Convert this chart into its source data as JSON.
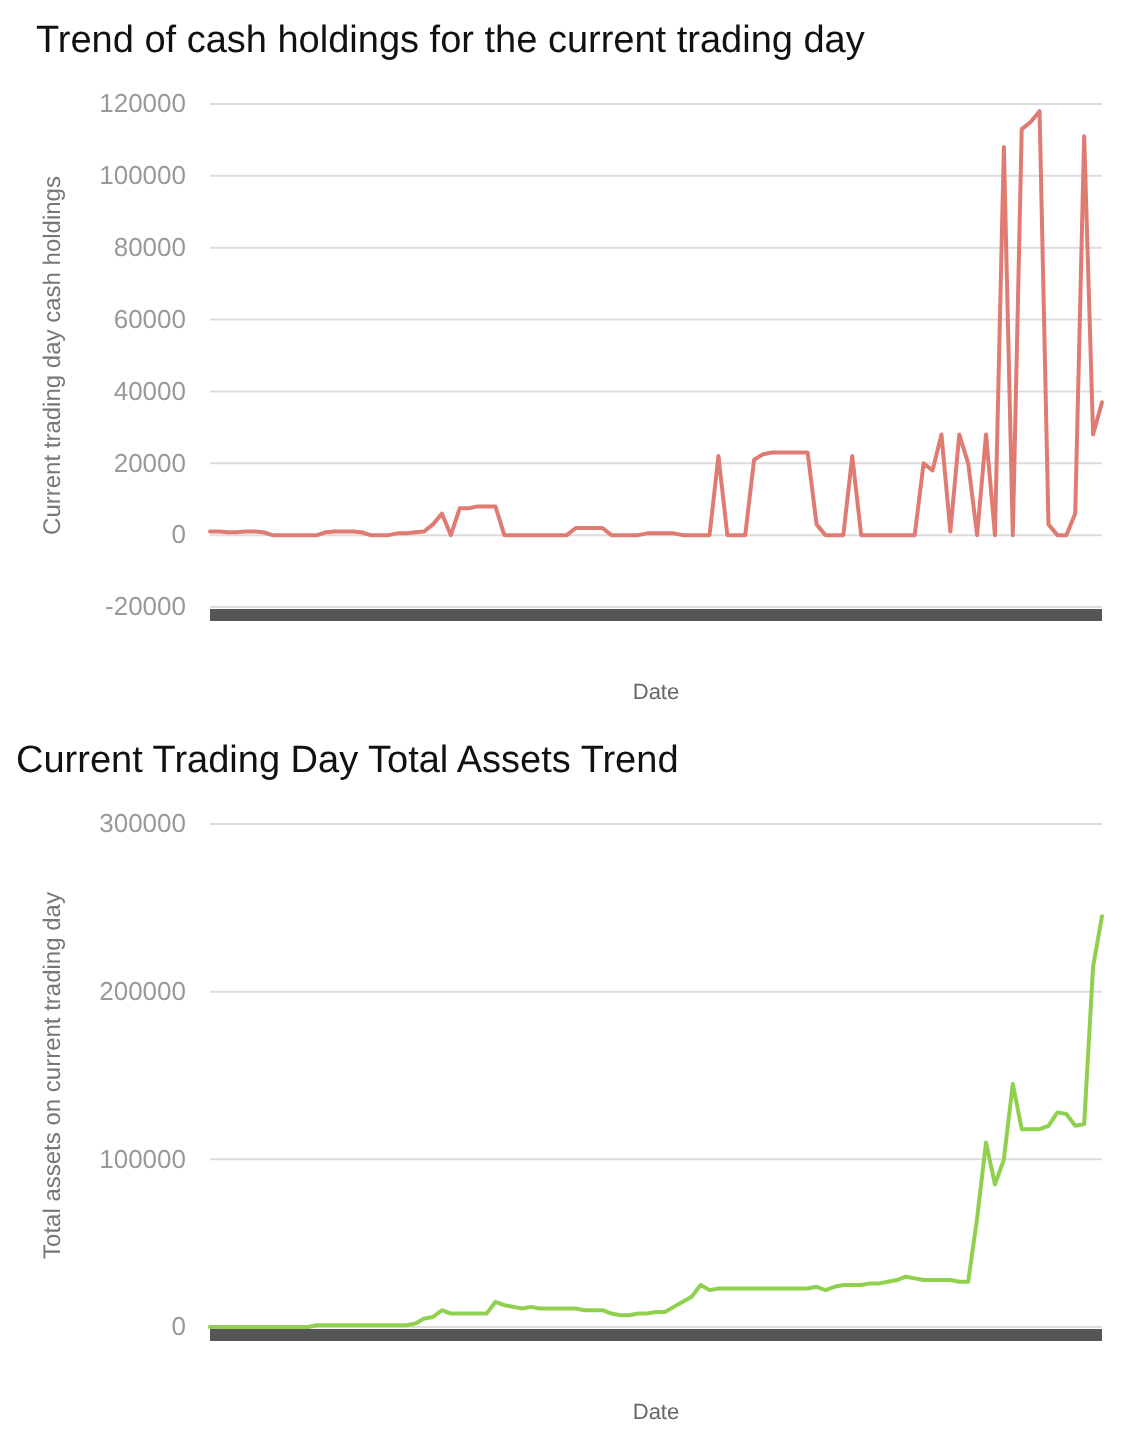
{
  "chart_data": [
    {
      "type": "line",
      "title": "Trend of cash holdings for the current trading day",
      "xlabel": "Date",
      "ylabel": "Current trading day cash holdings",
      "categories": [
        null,
        null,
        null,
        null,
        null,
        null,
        null,
        null,
        null,
        null,
        null,
        null,
        null,
        null,
        null,
        null,
        null,
        null,
        null,
        null,
        null,
        null,
        null,
        null,
        null,
        null,
        null,
        null,
        null,
        null,
        null,
        null,
        null,
        null,
        null,
        null,
        null,
        null,
        null,
        null,
        null,
        null,
        null,
        null,
        null,
        null,
        null,
        null,
        null,
        null,
        null,
        null,
        null,
        null,
        null,
        null,
        null,
        null,
        null,
        null,
        null,
        null,
        null,
        null,
        null,
        null,
        null,
        null,
        null,
        null,
        null,
        null,
        null,
        null,
        null,
        null,
        null,
        null,
        null,
        null,
        null,
        null,
        null,
        null,
        null,
        null,
        null,
        null,
        null,
        null,
        null,
        null,
        null,
        null,
        null,
        null,
        null,
        null,
        null,
        null,
        null
      ],
      "series": [
        {
          "color": "#e07b72",
          "values": [
            1000,
            1000,
            800,
            800,
            1000,
            1000,
            800,
            0,
            0,
            0,
            0,
            0,
            0,
            800,
            1000,
            1000,
            1000,
            800,
            0,
            0,
            0,
            500,
            500,
            800,
            1000,
            3000,
            6000,
            0,
            7500,
            7500,
            8000,
            8000,
            8000,
            0,
            0,
            0,
            0,
            0,
            0,
            0,
            0,
            2000,
            2000,
            2000,
            2000,
            0,
            0,
            0,
            0,
            500,
            500,
            500,
            500,
            0,
            0,
            0,
            0,
            22000,
            0,
            0,
            0,
            21000,
            22500,
            23000,
            23000,
            23000,
            23000,
            23000,
            3000,
            0,
            0,
            0,
            22000,
            0,
            0,
            0,
            0,
            0,
            0,
            0,
            20000,
            18000,
            28000,
            1000,
            28000,
            20000,
            0,
            28000,
            0,
            108000,
            0,
            113000,
            115000,
            118000,
            3000,
            0,
            0,
            6000,
            111000,
            28000,
            37000
          ]
        }
      ],
      "ylim": [
        -20000,
        120000
      ],
      "yticks": [
        -20000,
        0,
        20000,
        40000,
        60000,
        80000,
        100000,
        120000
      ],
      "grid": "y"
    },
    {
      "type": "line",
      "title": "Current Trading Day Total Assets Trend",
      "xlabel": "Date",
      "ylabel": "Total assets on current trading day",
      "categories": [
        null,
        null,
        null,
        null,
        null,
        null,
        null,
        null,
        null,
        null,
        null,
        null,
        null,
        null,
        null,
        null,
        null,
        null,
        null,
        null,
        null,
        null,
        null,
        null,
        null,
        null,
        null,
        null,
        null,
        null,
        null,
        null,
        null,
        null,
        null,
        null,
        null,
        null,
        null,
        null,
        null,
        null,
        null,
        null,
        null,
        null,
        null,
        null,
        null,
        null,
        null,
        null,
        null,
        null,
        null,
        null,
        null,
        null,
        null,
        null,
        null,
        null,
        null,
        null,
        null,
        null,
        null,
        null,
        null,
        null,
        null,
        null,
        null,
        null,
        null,
        null,
        null,
        null,
        null,
        null,
        null,
        null,
        null,
        null,
        null,
        null,
        null,
        null,
        null,
        null,
        null,
        null,
        null,
        null,
        null,
        null,
        null,
        null,
        null,
        null,
        null
      ],
      "series": [
        {
          "color": "#8fd14f",
          "values": [
            0,
            0,
            0,
            0,
            0,
            0,
            0,
            0,
            0,
            0,
            0,
            0,
            1000,
            1000,
            1000,
            1000,
            1000,
            1000,
            1000,
            1000,
            1000,
            1000,
            1000,
            2000,
            5000,
            6000,
            10000,
            8000,
            8000,
            8000,
            8000,
            8000,
            15000,
            13000,
            12000,
            11000,
            12000,
            11000,
            11000,
            11000,
            11000,
            11000,
            10000,
            10000,
            10000,
            8000,
            7000,
            7000,
            8000,
            8000,
            9000,
            9000,
            12000,
            15000,
            18000,
            25000,
            22000,
            23000,
            23000,
            23000,
            23000,
            23000,
            23000,
            23000,
            23000,
            23000,
            23000,
            23000,
            24000,
            22000,
            24000,
            25000,
            25000,
            25000,
            26000,
            26000,
            27000,
            28000,
            30000,
            29000,
            28000,
            28000,
            28000,
            28000,
            27000,
            27000,
            65000,
            110000,
            85000,
            100000,
            145000,
            118000,
            118000,
            118000,
            120000,
            128000,
            127000,
            120000,
            121000,
            215000,
            245000
          ]
        }
      ],
      "ylim": [
        0,
        300000
      ],
      "yticks": [
        0,
        100000,
        200000,
        300000
      ],
      "grid": "y"
    }
  ]
}
